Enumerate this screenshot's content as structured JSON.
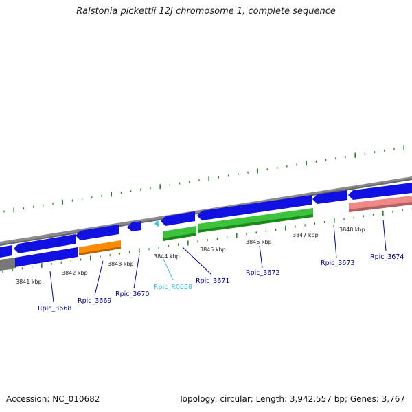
{
  "title": "Ralstonia pickettii 12J chromosome 1, complete sequence",
  "footer": {
    "accession": "Accession: NC_010682",
    "summary": "Topology: circular; Length: 3,942,557 bp; Genes: 3,767"
  },
  "colors": {
    "backbone": "#888888",
    "cds_blue": "#1010e0",
    "cds_green": "#3cc23c",
    "cds_orange": "#ff8c00",
    "cds_pink": "#f08888",
    "cds_gray": "#777777",
    "rna_cyan": "#33ccee",
    "tick": "#228822",
    "label_blue": "#000099",
    "label_cyan": "#33bbdd"
  },
  "scale_labels": [
    "3841 kbp",
    "3842 kbp",
    "3843 kbp",
    "3844 kbp",
    "3845 kbp",
    "3846 kbp",
    "3847 kbp",
    "3848 kbp"
  ],
  "gene_labels": [
    {
      "name": "Rpic_3668",
      "type": "cds"
    },
    {
      "name": "Rpic_3669",
      "type": "cds"
    },
    {
      "name": "Rpic_3670",
      "type": "cds"
    },
    {
      "name": "Rpic_R0058",
      "type": "rna"
    },
    {
      "name": "Rpic_3671",
      "type": "cds"
    },
    {
      "name": "Rpic_3672",
      "type": "cds"
    },
    {
      "name": "Rpic_3673",
      "type": "cds"
    },
    {
      "name": "Rpic_3674",
      "type": "cds"
    }
  ]
}
